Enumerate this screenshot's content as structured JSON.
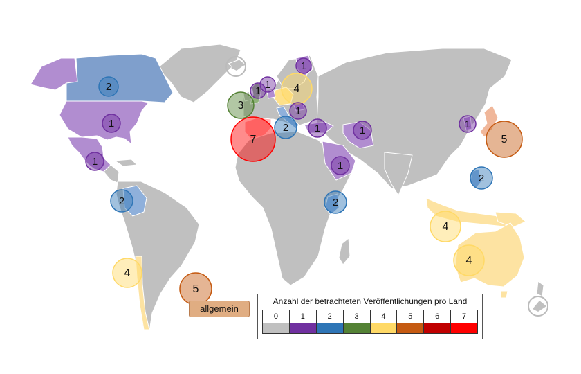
{
  "legend": {
    "title": "Anzahl der betrachteten Veröffentlichungen pro Land",
    "levels": [
      "0",
      "1",
      "2",
      "3",
      "4",
      "5",
      "6",
      "7"
    ],
    "colors": [
      "#c0c0c0",
      "#7030a0",
      "#2e75b6",
      "#548235",
      "#ffd966",
      "#c55a11",
      "#c00000",
      "#ff0000"
    ]
  },
  "general_badge": {
    "label": "allgemein"
  },
  "bubbles": [
    {
      "id": "canada",
      "value": "2"
    },
    {
      "id": "usa",
      "value": "1"
    },
    {
      "id": "mexico",
      "value": "1"
    },
    {
      "id": "colombia",
      "value": "2"
    },
    {
      "id": "chile",
      "value": "4"
    },
    {
      "id": "general",
      "value": "5"
    },
    {
      "id": "spain",
      "value": "7"
    },
    {
      "id": "uk",
      "value": "3"
    },
    {
      "id": "netherlands",
      "value": "1"
    },
    {
      "id": "denmark",
      "value": "1"
    },
    {
      "id": "finland",
      "value": "1"
    },
    {
      "id": "germany",
      "value": "4"
    },
    {
      "id": "hungary",
      "value": "1"
    },
    {
      "id": "italy",
      "value": "2"
    },
    {
      "id": "turkey",
      "value": "1"
    },
    {
      "id": "iran",
      "value": "1"
    },
    {
      "id": "saudi-arabia",
      "value": "1"
    },
    {
      "id": "kenya",
      "value": "2"
    },
    {
      "id": "korea",
      "value": "1"
    },
    {
      "id": "japan",
      "value": "5"
    },
    {
      "id": "philippines",
      "value": "2"
    },
    {
      "id": "indonesia",
      "value": "4"
    },
    {
      "id": "australia",
      "value": "4"
    }
  ]
}
